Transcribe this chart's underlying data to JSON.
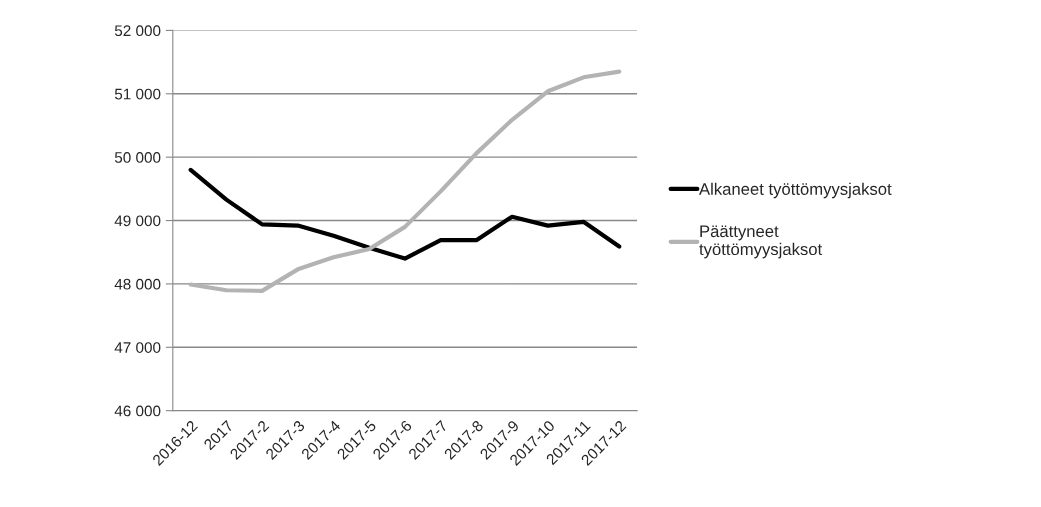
{
  "chart_data": {
    "type": "line",
    "categories": [
      "2016-12",
      "2017",
      "2017-2",
      "2017-3",
      "2017-4",
      "2017-5",
      "2017-6",
      "2017-7",
      "2017-8",
      "2017-9",
      "2017-10",
      "2017-11",
      "2017-12"
    ],
    "series": [
      {
        "name": "Alkaneet työttömyysjaksot",
        "color": "#000000",
        "values": [
          49800,
          49330,
          48940,
          48920,
          48760,
          48570,
          48400,
          48690,
          48690,
          49060,
          48920,
          48980,
          48590
        ]
      },
      {
        "name": "Päättyneet\ntyöttömyysjaksot",
        "color": "#b3b3b3",
        "values": [
          47990,
          47900,
          47890,
          48230,
          48420,
          48550,
          48900,
          49460,
          50060,
          50590,
          51040,
          51260,
          51350
        ]
      }
    ],
    "ylim": [
      46000,
      52000
    ],
    "yticks": [
      {
        "value": 46000,
        "label": "46 000"
      },
      {
        "value": 47000,
        "label": "47 000"
      },
      {
        "value": 48000,
        "label": "48 000"
      },
      {
        "value": 49000,
        "label": "49 000"
      },
      {
        "value": 50000,
        "label": "50 000"
      },
      {
        "value": 51000,
        "label": "51 000"
      },
      {
        "value": 52000,
        "label": "52 000"
      }
    ],
    "grid": "y",
    "legend": "right",
    "marker": "none",
    "line_style": "solid"
  }
}
